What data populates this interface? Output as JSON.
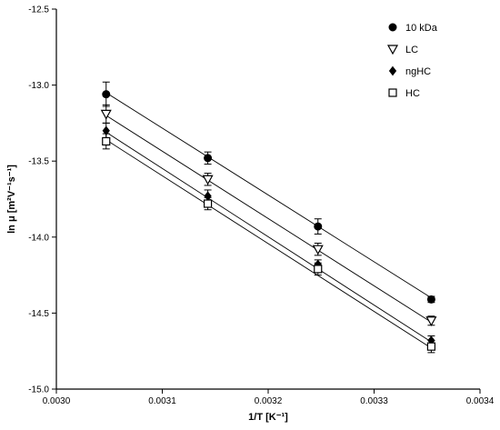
{
  "chart_data": {
    "type": "scatter",
    "xlabel": "1/T [K⁻¹]",
    "ylabel": "ln μ [m²V⁻¹s⁻¹]",
    "xlim": [
      0.003,
      0.0034
    ],
    "ylim": [
      -15.0,
      -12.5
    ],
    "x_ticks": [
      "0.0030",
      "0.0031",
      "0.0032",
      "0.0033",
      "0.0034"
    ],
    "y_ticks": [
      "-12.5",
      "-13.0",
      "-13.5",
      "-14.0",
      "-14.5",
      "-15.0"
    ],
    "x": [
      0.003047,
      0.003143,
      0.003247,
      0.003354
    ],
    "legend_position": "top-right",
    "series": [
      {
        "name": "10 kDa",
        "marker": "filled-circle",
        "values": [
          -13.06,
          -13.48,
          -13.93,
          -14.41
        ],
        "errors": [
          0.08,
          0.04,
          0.05,
          0.02
        ],
        "fit": [
          -13.05,
          -14.4
        ]
      },
      {
        "name": "LC",
        "marker": "open-triangle-down",
        "values": [
          -13.19,
          -13.62,
          -14.08,
          -14.55
        ],
        "errors": [
          0.06,
          0.04,
          0.04,
          0.03
        ],
        "fit": [
          -13.2,
          -14.56
        ]
      },
      {
        "name": "ngHC",
        "marker": "filled-diamond",
        "values": [
          -13.3,
          -13.73,
          -14.18,
          -14.68
        ],
        "errors": [
          0.05,
          0.04,
          0.03,
          0.03
        ],
        "fit": [
          -13.31,
          -14.69
        ]
      },
      {
        "name": "HC",
        "marker": "open-square",
        "values": [
          -13.37,
          -13.78,
          -14.21,
          -14.72
        ],
        "errors": [
          0.05,
          0.04,
          0.04,
          0.04
        ],
        "fit": [
          -13.36,
          -14.73
        ]
      }
    ]
  }
}
